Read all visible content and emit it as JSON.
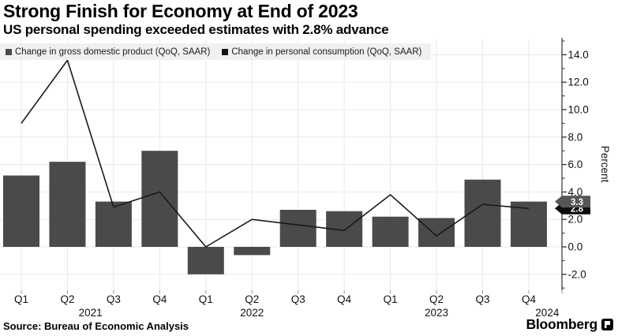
{
  "header": {
    "title": "Strong Finish for Economy at End of 2023",
    "subtitle": "US personal spending exceeded estimates with 2.8% advance"
  },
  "legend": {
    "items": [
      {
        "label": "Change in gross domestic product (QoQ, SAAR)",
        "color": "#4a4a4a"
      },
      {
        "label": "Change in personal consumption (QoQ, SAAR)",
        "color": "#141414"
      }
    ]
  },
  "chart_data": {
    "type": "bar",
    "categories": [
      "Q1",
      "Q2",
      "Q3",
      "Q4",
      "Q1",
      "Q2",
      "Q3",
      "Q4",
      "Q1",
      "Q2",
      "Q3",
      "Q4"
    ],
    "series": [
      {
        "name": "Change in gross domestic product (QoQ, SAAR)",
        "type": "bar",
        "color": "#4a4a4a",
        "values": [
          5.2,
          6.2,
          3.3,
          7.0,
          -2.0,
          -0.6,
          2.7,
          2.6,
          2.2,
          2.1,
          4.9,
          3.3
        ]
      },
      {
        "name": "Change in personal consumption (QoQ, SAAR)",
        "type": "line",
        "color": "#1a1a1a",
        "values": [
          9.0,
          13.6,
          2.9,
          4.0,
          0.0,
          2.0,
          1.6,
          1.2,
          3.8,
          0.8,
          3.1,
          2.8
        ]
      }
    ],
    "year_labels": [
      {
        "text": "2021",
        "index": 1.5
      },
      {
        "text": "2022",
        "index": 5.0
      },
      {
        "text": "2023",
        "index": 9.0
      },
      {
        "text": "2024",
        "index": 11.4
      }
    ],
    "yaxis": {
      "label": "Percent",
      "side": "right",
      "ticks": [
        -2.0,
        0.0,
        2.0,
        4.0,
        6.0,
        8.0,
        10.0,
        12.0,
        14.0
      ],
      "minor_tick_step": 1,
      "range": [
        -3.2,
        15.1
      ],
      "grid": true
    },
    "end_labels": [
      {
        "text": "3.3",
        "value": 3.3,
        "bg": "#565656",
        "fg": "#ffffff"
      },
      {
        "text": "2.8",
        "value": 2.8,
        "bg": "#0d0d0d",
        "fg": "#ffffff"
      }
    ]
  },
  "footer": {
    "source": "Source: Bureau of Economic Analysis",
    "brand": "Bloomberg"
  },
  "colors": {
    "grid": "#e9e9e9",
    "axis": "#333333",
    "x_tick": "#999999",
    "text": "#111111",
    "legend_bg": "#f0f0f0"
  }
}
